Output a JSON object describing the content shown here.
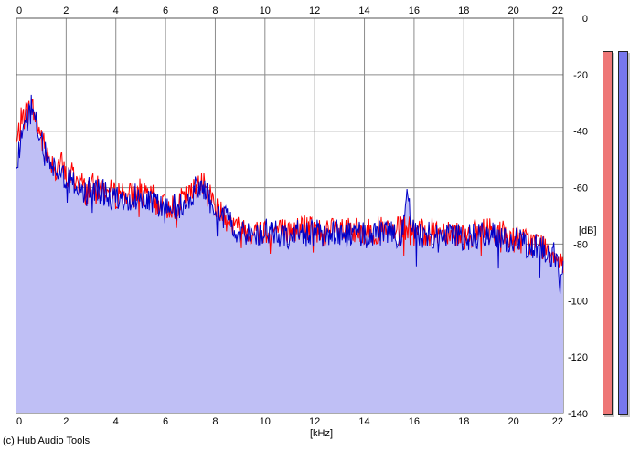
{
  "credit": "(c) Hub Audio Tools",
  "x_unit": "[kHz]",
  "y_unit": "[dB]",
  "colors": {
    "background": "#ffffff",
    "plot_fill": "#bfbff5",
    "grid": "#8c8c8c",
    "series_left": "#ff0000",
    "series_right": "#0000c8",
    "meter_left": "#ee7777",
    "meter_right": "#7777ee"
  },
  "chart_data": {
    "type": "line",
    "x_label": "[kHz]",
    "y_label": "[dB]",
    "x_range": [
      0,
      22
    ],
    "y_range": [
      -140,
      0
    ],
    "x_ticks": [
      "0",
      "2",
      "4",
      "6",
      "8",
      "10",
      "12",
      "14",
      "16",
      "18",
      "20",
      "22"
    ],
    "y_ticks": [
      "0",
      "-20",
      "-40",
      "-60",
      "-80",
      "-100",
      "-120",
      "-140"
    ],
    "grid": true,
    "series": [
      {
        "color": "red",
        "x": [
          0,
          0.2,
          0.4,
          0.6,
          0.8,
          1,
          1.2,
          1.4,
          1.6,
          1.8,
          2,
          2.2,
          2.4,
          2.6,
          2.8,
          3,
          3.2,
          3.4,
          3.6,
          3.8,
          4,
          4.2,
          4.4,
          4.6,
          4.8,
          5,
          5.2,
          5.4,
          5.6,
          5.8,
          6,
          6.2,
          6.4,
          6.6,
          6.8,
          7,
          7.2,
          7.4,
          7.6,
          7.8,
          8,
          8.2,
          8.4,
          8.6,
          8.8,
          9,
          9.2,
          9.4,
          9.6,
          9.8,
          10,
          10.5,
          11,
          11.5,
          12,
          12.5,
          13,
          13.5,
          14,
          14.5,
          15,
          15.5,
          15.7,
          16,
          16.5,
          17,
          17.5,
          18,
          18.5,
          19,
          19.5,
          20,
          20.5,
          21,
          21.5,
          22
        ],
        "y": [
          -45,
          -36,
          -34,
          -31,
          -36,
          -42,
          -48,
          -50,
          -53,
          -51,
          -57,
          -55,
          -57,
          -58,
          -62,
          -59,
          -61,
          -60,
          -61,
          -62,
          -63,
          -61,
          -62,
          -63,
          -62,
          -61,
          -64,
          -63,
          -65,
          -66,
          -67,
          -66,
          -67,
          -65,
          -64,
          -63,
          -60,
          -56,
          -61,
          -63,
          -65,
          -68,
          -70,
          -72,
          -74,
          -75,
          -74,
          -76,
          -76,
          -75,
          -75,
          -75,
          -76,
          -74,
          -75,
          -76,
          -75,
          -76,
          -76,
          -75,
          -76,
          -75,
          -74,
          -76,
          -76,
          -75,
          -75,
          -77,
          -76,
          -75,
          -76,
          -78,
          -79,
          -80,
          -82,
          -86
        ]
      },
      {
        "color": "blue",
        "x": [
          0,
          0.2,
          0.4,
          0.6,
          0.8,
          1,
          1.2,
          1.4,
          1.6,
          1.8,
          2,
          2.2,
          2.4,
          2.6,
          2.8,
          3,
          3.2,
          3.4,
          3.6,
          3.8,
          4,
          4.2,
          4.4,
          4.6,
          4.8,
          5,
          5.2,
          5.4,
          5.6,
          5.8,
          6,
          6.2,
          6.4,
          6.6,
          6.8,
          7,
          7.2,
          7.4,
          7.6,
          7.8,
          8,
          8.2,
          8.4,
          8.6,
          8.8,
          9,
          9.2,
          9.4,
          9.6,
          9.8,
          10,
          10.5,
          11,
          11.5,
          12,
          12.5,
          13,
          13.5,
          14,
          14.5,
          15,
          15.5,
          15.7,
          16,
          16.5,
          17,
          17.5,
          18,
          18.5,
          19,
          19.5,
          20,
          20.5,
          21,
          21.5,
          22
        ],
        "y": [
          -55,
          -40,
          -36,
          -32,
          -38,
          -43,
          -50,
          -51,
          -54,
          -52,
          -58,
          -57,
          -59,
          -60,
          -63,
          -60,
          -62,
          -61,
          -63,
          -64,
          -64,
          -63,
          -63,
          -64,
          -63,
          -62,
          -64,
          -64,
          -66,
          -67,
          -68,
          -66,
          -67,
          -66,
          -64,
          -64,
          -61,
          -58,
          -62,
          -64,
          -66,
          -69,
          -71,
          -73,
          -75,
          -76,
          -75,
          -77,
          -77,
          -76,
          -76,
          -76,
          -77,
          -76,
          -76,
          -77,
          -76,
          -77,
          -77,
          -76,
          -77,
          -76,
          -62,
          -76,
          -77,
          -76,
          -77,
          -78,
          -77,
          -77,
          -77,
          -79,
          -80,
          -81,
          -83,
          -88
        ]
      }
    ]
  }
}
